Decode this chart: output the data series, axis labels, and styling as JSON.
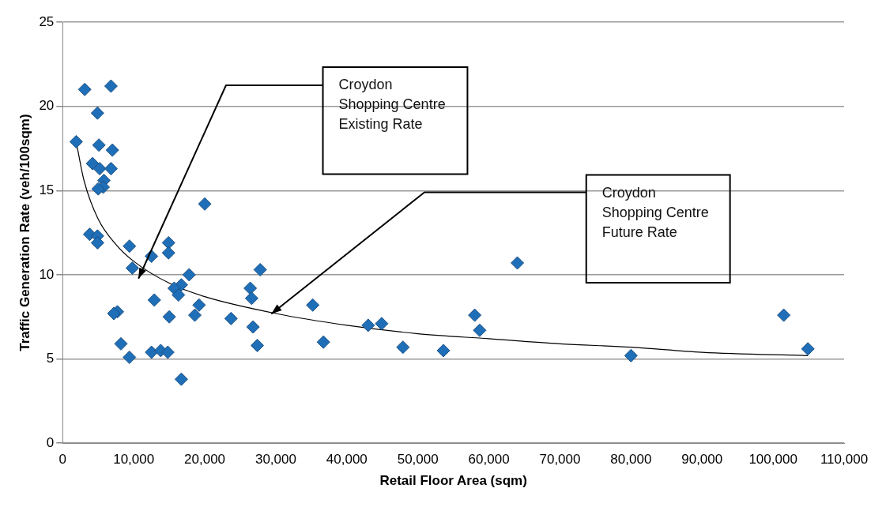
{
  "chart_data": {
    "type": "scatter",
    "xlabel": "Retail Floor Area (sqm)",
    "ylabel": "Traffic Generation Rate (veh/100sqm)",
    "xlim": [
      0,
      110000
    ],
    "ylim": [
      0,
      25
    ],
    "xticks": [
      {
        "value": 0,
        "label": "0"
      },
      {
        "value": 10000,
        "label": "10,000"
      },
      {
        "value": 20000,
        "label": "20,000"
      },
      {
        "value": 30000,
        "label": "30,000"
      },
      {
        "value": 40000,
        "label": "40,000"
      },
      {
        "value": 50000,
        "label": "50,000"
      },
      {
        "value": 60000,
        "label": "60,000"
      },
      {
        "value": 70000,
        "label": "70,000"
      },
      {
        "value": 80000,
        "label": "80,000"
      },
      {
        "value": 90000,
        "label": "90,000"
      },
      {
        "value": 100000,
        "label": "100,000"
      },
      {
        "value": 110000,
        "label": "110,000"
      }
    ],
    "yticks": [
      0,
      5,
      10,
      15,
      20,
      25
    ],
    "grid": "y",
    "legend": false,
    "series": [
      {
        "marker": "diamond",
        "color": "#1f6fb8",
        "x": [
          1900,
          3100,
          6800,
          4900,
          5100,
          7000,
          4200,
          5200,
          6800,
          5800,
          5700,
          5000,
          20000,
          3800,
          4900,
          4900,
          9400,
          14900,
          14900,
          12500,
          9800,
          17800,
          27800,
          16700,
          15700,
          16300,
          12900,
          19200,
          18600,
          15000,
          23700,
          26800,
          27400,
          26400,
          26600,
          7700,
          7200,
          8200,
          9400,
          12500,
          13800,
          14800,
          16700,
          35200,
          36700,
          43000,
          44900,
          47900,
          53600,
          58000,
          58700,
          64000,
          80000,
          101500,
          104900
        ],
        "values": [
          17.9,
          21.0,
          21.2,
          19.6,
          17.7,
          17.4,
          16.6,
          16.3,
          16.3,
          15.6,
          15.2,
          15.1,
          14.2,
          12.4,
          12.3,
          11.9,
          11.7,
          11.9,
          11.3,
          11.1,
          10.4,
          10.0,
          10.3,
          9.4,
          9.2,
          8.8,
          8.5,
          8.2,
          7.6,
          7.5,
          7.4,
          6.9,
          5.8,
          9.2,
          8.6,
          7.8,
          7.7,
          5.9,
          5.1,
          5.4,
          5.5,
          5.4,
          3.8,
          8.2,
          6.0,
          7.0,
          7.1,
          5.7,
          5.5,
          7.6,
          6.7,
          10.7,
          5.2,
          7.6,
          5.6
        ]
      },
      {
        "type": "line",
        "marker": "none",
        "line_style": "solid",
        "color": "#000000",
        "x": [
          1900,
          3000,
          5000,
          7500,
          10000,
          15000,
          20000,
          30000,
          40000,
          50000,
          60000,
          70000,
          80000,
          90000,
          104900
        ],
        "values": [
          17.9,
          15.6,
          13.3,
          11.8,
          10.8,
          9.5,
          8.7,
          7.7,
          7.0,
          6.5,
          6.2,
          5.9,
          5.7,
          5.4,
          5.2
        ]
      }
    ],
    "annotations": [
      "Croydon Shopping Centre Existing Rate",
      "Croydon Shopping Centre Future Rate"
    ]
  }
}
